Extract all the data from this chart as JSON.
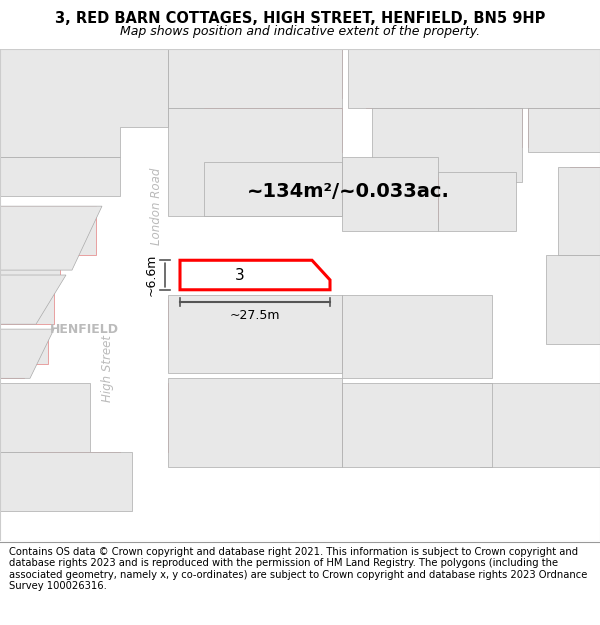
{
  "title": "3, RED BARN COTTAGES, HIGH STREET, HENFIELD, BN5 9HP",
  "subtitle": "Map shows position and indicative extent of the property.",
  "footer": "Contains OS data © Crown copyright and database right 2021. This information is subject to Crown copyright and database rights 2023 and is reproduced with the permission of HM Land Registry. The polygons (including the associated geometry, namely x, y co-ordinates) are subject to Crown copyright and database rights 2023 Ordnance Survey 100026316.",
  "map_bg": "#ffffff",
  "building_fill": "#e8e8e8",
  "building_edge": "#e8a0a0",
  "building_lw": 0.7,
  "grey_edge": "#aaaaaa",
  "grey_lw": 0.5,
  "highlight_fill": "#ffffff",
  "highlight_edge": "#ff0000",
  "highlight_lw": 2.2,
  "area_text": "~134m²/~0.033ac.",
  "width_text": "~27.5m",
  "height_text": "~6.6m",
  "label_3": "3",
  "london_road_label": "London Road",
  "high_street_label": "High Street",
  "henfield_label": "HENFIELD",
  "footer_fontsize": 7.2,
  "title_fontsize": 10.5,
  "subtitle_fontsize": 9,
  "label_color": "#bbbbbb",
  "dim_color": "#555555",
  "area_fontsize": 14,
  "dim_fontsize": 9
}
